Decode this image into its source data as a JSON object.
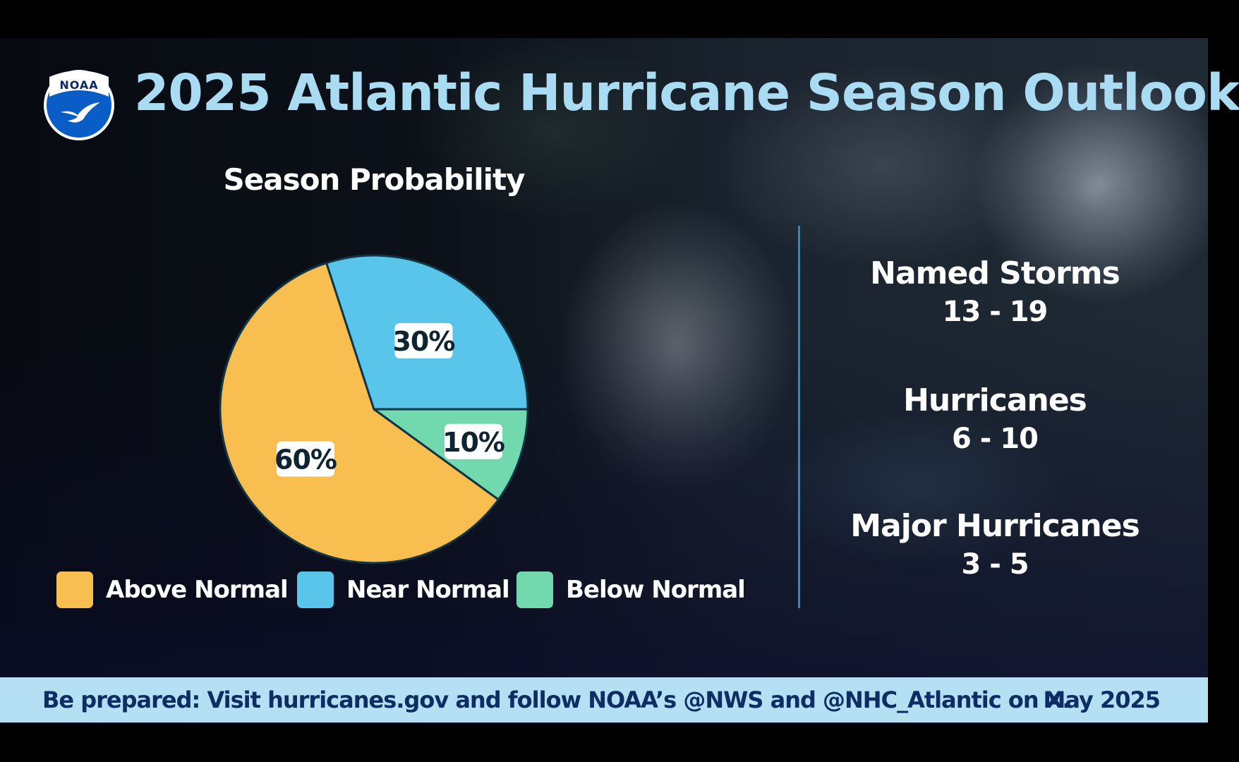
{
  "header": {
    "title": "2025 Atlantic Hurricane Season Outlook",
    "logo_text": "NOAA"
  },
  "chart_data": {
    "type": "pie",
    "title": "Season Probability",
    "categories": [
      "Above Normal",
      "Near Normal",
      "Below Normal"
    ],
    "values": [
      60,
      30,
      10
    ],
    "labels": [
      "60%",
      "30%",
      "10%"
    ],
    "colors": [
      "#f8be4f",
      "#5ac5ea",
      "#72d8ad"
    ],
    "legend_position": "bottom"
  },
  "stats": [
    {
      "label": "Named Storms",
      "value": "13 - 19"
    },
    {
      "label": "Hurricanes",
      "value": "6 - 10"
    },
    {
      "label": "Major Hurricanes",
      "value": "3 - 5"
    }
  ],
  "footer": {
    "text": "Be prepared: Visit hurricanes.gov and follow NOAA’s @NWS and @NHC_Atlantic on X.",
    "date": "May 2025"
  },
  "colors": {
    "title": "#a9dbf2",
    "divider": "#1f8fd0",
    "footer_bg": "#b5e0f3",
    "footer_text": "#0d2d63",
    "slice_border": "#123445"
  }
}
